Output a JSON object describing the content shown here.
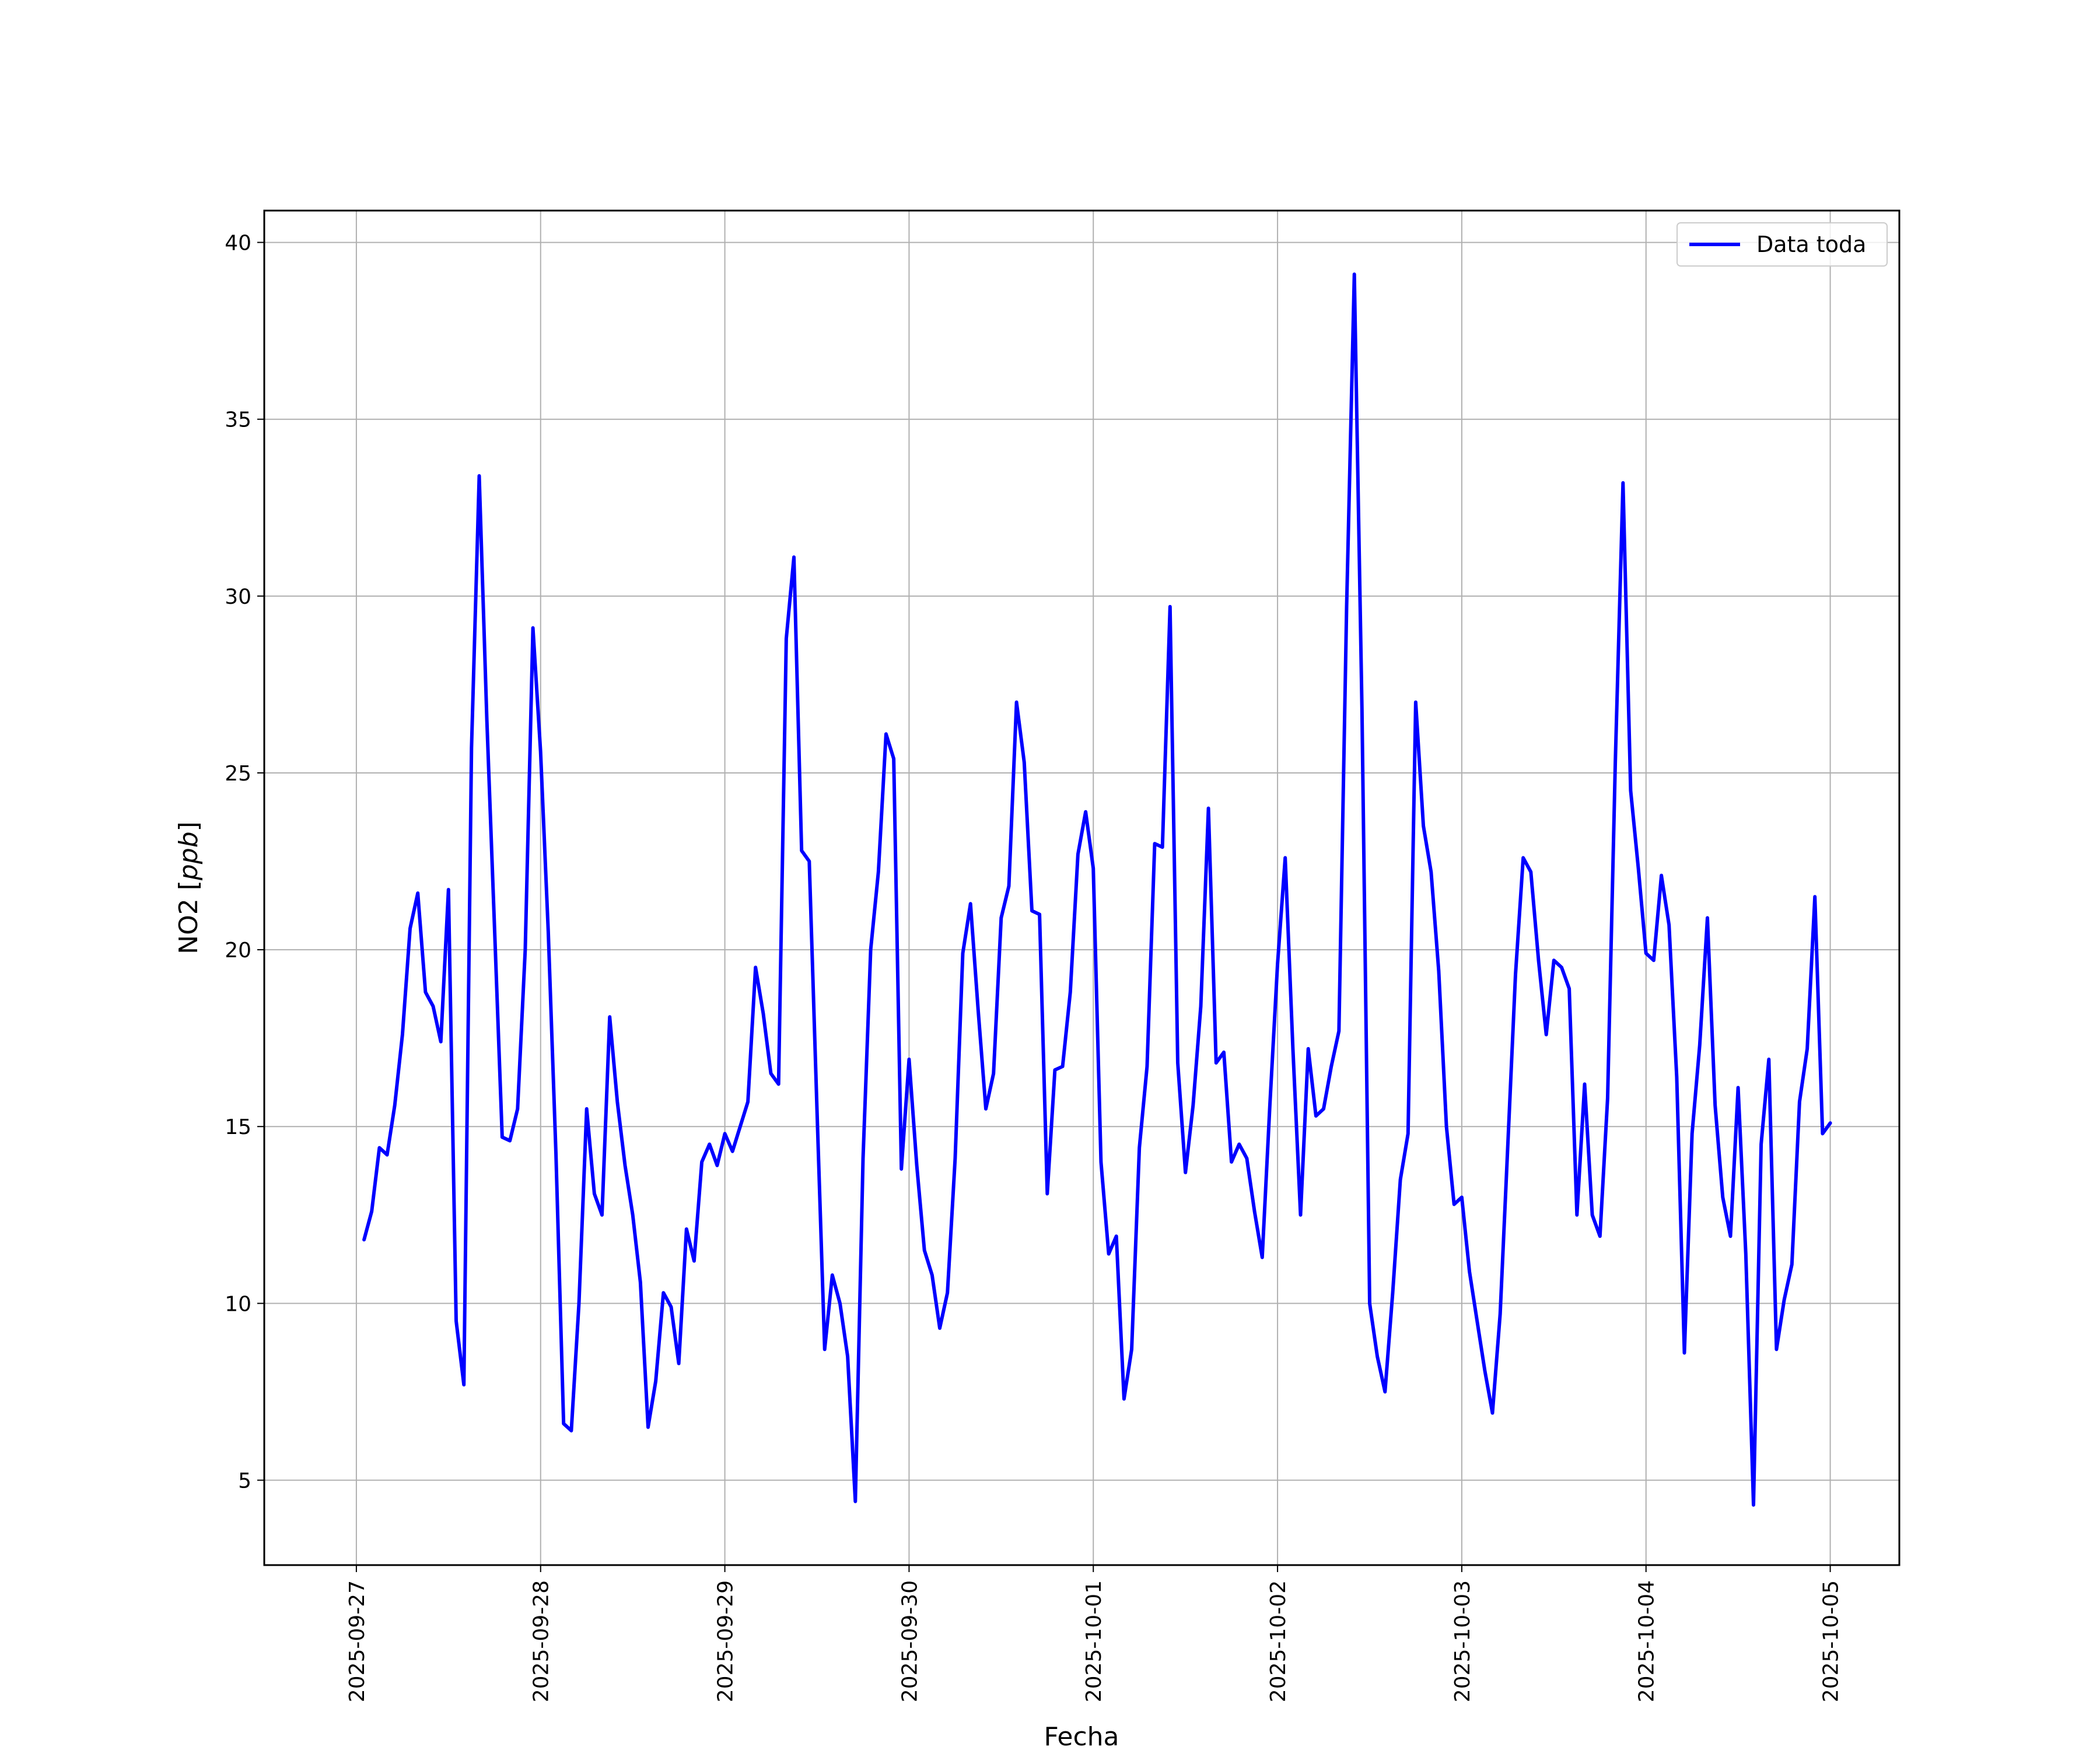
{
  "chart_data": {
    "type": "line",
    "title": "",
    "xlabel": "Fecha",
    "ylabel": "NO2 [ppb]",
    "ylabel_main": "NO2 [",
    "ylabel_unit": "ppb",
    "ylabel_close": "]",
    "x_tick_labels": [
      "2025-09-27",
      "2025-09-28",
      "2025-09-29",
      "2025-09-30",
      "2025-10-01",
      "2025-10-02",
      "2025-10-03",
      "2025-10-04",
      "2025-10-05"
    ],
    "y_ticks": [
      5,
      10,
      15,
      20,
      25,
      30,
      35,
      40
    ],
    "xlim": [
      "2025-09-26T12:00",
      "2025-10-05T09:00"
    ],
    "ylim": [
      2.6,
      40.9
    ],
    "grid": true,
    "legend_position": "top-right",
    "series": [
      {
        "name": "Data toda",
        "color": "#0000ff",
        "x": [
          "2025-09-27T01:00",
          "2025-09-27T02:00",
          "2025-09-27T03:00",
          "2025-09-27T04:00",
          "2025-09-27T05:00",
          "2025-09-27T06:00",
          "2025-09-27T07:00",
          "2025-09-27T08:00",
          "2025-09-27T09:00",
          "2025-09-27T10:00",
          "2025-09-27T11:00",
          "2025-09-27T12:00",
          "2025-09-27T13:00",
          "2025-09-27T14:00",
          "2025-09-27T15:00",
          "2025-09-27T16:00",
          "2025-09-27T17:00",
          "2025-09-27T18:00",
          "2025-09-27T19:00",
          "2025-09-27T20:00",
          "2025-09-27T21:00",
          "2025-09-27T22:00",
          "2025-09-27T23:00",
          "2025-09-28T00:00",
          "2025-09-28T01:00",
          "2025-09-28T02:00",
          "2025-09-28T03:00",
          "2025-09-28T04:00",
          "2025-09-28T05:00",
          "2025-09-28T06:00",
          "2025-09-28T07:00",
          "2025-09-28T08:00",
          "2025-09-28T09:00",
          "2025-09-28T10:00",
          "2025-09-28T11:00",
          "2025-09-28T12:00",
          "2025-09-28T13:00",
          "2025-09-28T14:00",
          "2025-09-28T15:00",
          "2025-09-28T16:00",
          "2025-09-28T17:00",
          "2025-09-28T18:00",
          "2025-09-28T19:00",
          "2025-09-28T20:00",
          "2025-09-28T21:00",
          "2025-09-28T22:00",
          "2025-09-28T23:00",
          "2025-09-29T00:00",
          "2025-09-29T01:00",
          "2025-09-29T02:00",
          "2025-09-29T03:00",
          "2025-09-29T04:00",
          "2025-09-29T05:00",
          "2025-09-29T06:00",
          "2025-09-29T07:00",
          "2025-09-29T08:00",
          "2025-09-29T09:00",
          "2025-09-29T10:00",
          "2025-09-29T11:00",
          "2025-09-29T12:00",
          "2025-09-29T13:00",
          "2025-09-29T14:00",
          "2025-09-29T15:00",
          "2025-09-29T16:00",
          "2025-09-29T17:00",
          "2025-09-29T18:00",
          "2025-09-29T19:00",
          "2025-09-29T20:00",
          "2025-09-29T21:00",
          "2025-09-29T22:00",
          "2025-09-29T23:00",
          "2025-09-30T00:00",
          "2025-09-30T01:00",
          "2025-09-30T02:00",
          "2025-09-30T03:00",
          "2025-09-30T04:00",
          "2025-09-30T05:00",
          "2025-09-30T06:00",
          "2025-09-30T07:00",
          "2025-09-30T08:00",
          "2025-09-30T09:00",
          "2025-09-30T10:00",
          "2025-09-30T11:00",
          "2025-09-30T12:00",
          "2025-09-30T13:00",
          "2025-09-30T14:00",
          "2025-09-30T15:00",
          "2025-09-30T16:00",
          "2025-09-30T17:00",
          "2025-09-30T18:00",
          "2025-09-30T19:00",
          "2025-09-30T20:00",
          "2025-09-30T21:00",
          "2025-09-30T22:00",
          "2025-09-30T23:00",
          "2025-10-01T00:00",
          "2025-10-01T01:00",
          "2025-10-01T02:00",
          "2025-10-01T03:00",
          "2025-10-01T04:00",
          "2025-10-01T05:00",
          "2025-10-01T06:00",
          "2025-10-01T07:00",
          "2025-10-01T08:00",
          "2025-10-01T09:00",
          "2025-10-01T10:00",
          "2025-10-01T11:00",
          "2025-10-01T12:00",
          "2025-10-01T13:00",
          "2025-10-01T14:00",
          "2025-10-01T15:00",
          "2025-10-01T16:00",
          "2025-10-01T17:00",
          "2025-10-01T18:00",
          "2025-10-01T19:00",
          "2025-10-01T20:00",
          "2025-10-01T21:00",
          "2025-10-01T22:00",
          "2025-10-01T23:00",
          "2025-10-02T00:00",
          "2025-10-02T01:00",
          "2025-10-02T02:00",
          "2025-10-02T03:00",
          "2025-10-02T04:00",
          "2025-10-02T05:00",
          "2025-10-02T06:00",
          "2025-10-02T07:00",
          "2025-10-02T08:00",
          "2025-10-02T09:00",
          "2025-10-02T10:00",
          "2025-10-02T11:00",
          "2025-10-02T12:00",
          "2025-10-02T13:00",
          "2025-10-02T14:00",
          "2025-10-02T15:00",
          "2025-10-02T16:00",
          "2025-10-02T17:00",
          "2025-10-02T18:00",
          "2025-10-02T19:00",
          "2025-10-02T20:00",
          "2025-10-02T21:00",
          "2025-10-02T22:00",
          "2025-10-02T23:00",
          "2025-10-03T00:00",
          "2025-10-03T01:00",
          "2025-10-03T02:00",
          "2025-10-03T03:00",
          "2025-10-03T04:00",
          "2025-10-03T05:00",
          "2025-10-03T06:00",
          "2025-10-03T07:00",
          "2025-10-03T08:00",
          "2025-10-03T09:00",
          "2025-10-03T10:00",
          "2025-10-03T11:00",
          "2025-10-03T12:00",
          "2025-10-03T13:00",
          "2025-10-03T14:00",
          "2025-10-03T15:00",
          "2025-10-03T16:00",
          "2025-10-03T17:00",
          "2025-10-03T18:00",
          "2025-10-03T19:00",
          "2025-10-03T20:00",
          "2025-10-03T21:00",
          "2025-10-03T22:00",
          "2025-10-03T23:00",
          "2025-10-04T00:00",
          "2025-10-04T01:00",
          "2025-10-04T02:00",
          "2025-10-04T03:00",
          "2025-10-04T04:00",
          "2025-10-04T05:00",
          "2025-10-04T06:00",
          "2025-10-04T07:00",
          "2025-10-04T08:00",
          "2025-10-04T09:00",
          "2025-10-04T10:00",
          "2025-10-04T11:00",
          "2025-10-04T12:00",
          "2025-10-04T13:00",
          "2025-10-04T14:00",
          "2025-10-04T15:00",
          "2025-10-04T16:00",
          "2025-10-04T17:00",
          "2025-10-04T18:00",
          "2025-10-04T19:00",
          "2025-10-04T20:00",
          "2025-10-04T21:00",
          "2025-10-04T22:00",
          "2025-10-04T23:00",
          "2025-10-05T00:00"
        ],
        "y": [
          11.8,
          12.6,
          14.4,
          14.2,
          15.6,
          17.6,
          20.6,
          21.6,
          18.8,
          18.4,
          17.4,
          21.7,
          9.5,
          7.7,
          25.7,
          33.4,
          26.5,
          20.6,
          14.7,
          14.6,
          15.5,
          20.0,
          29.1,
          25.6,
          20.5,
          14.2,
          6.6,
          6.4,
          10.0,
          15.5,
          13.1,
          12.5,
          18.1,
          15.7,
          13.9,
          12.5,
          10.6,
          6.5,
          7.8,
          10.3,
          9.9,
          8.3,
          12.1,
          11.2,
          14.0,
          14.5,
          13.9,
          14.8,
          14.3,
          15.0,
          15.7,
          19.5,
          18.2,
          16.5,
          16.2,
          28.8,
          31.1,
          22.8,
          22.5,
          15.5,
          8.7,
          10.8,
          10.0,
          8.5,
          4.4,
          14.1,
          20.0,
          22.2,
          26.1,
          25.4,
          13.8,
          16.9,
          13.9,
          11.5,
          10.8,
          9.3,
          10.3,
          14.1,
          19.9,
          21.3,
          18.3,
          15.5,
          16.5,
          20.9,
          21.8,
          27.0,
          25.3,
          21.1,
          21.0,
          13.1,
          16.6,
          16.7,
          18.8,
          22.7,
          23.9,
          22.3,
          14.0,
          11.4,
          11.9,
          7.3,
          8.7,
          14.4,
          16.7,
          23.0,
          22.9,
          29.7,
          16.8,
          13.7,
          15.6,
          18.4,
          24.0,
          16.8,
          17.1,
          14.0,
          14.5,
          14.1,
          12.6,
          11.3,
          15.6,
          19.6,
          22.6,
          17.2,
          12.5,
          17.2,
          15.3,
          15.5,
          16.7,
          17.7,
          29.7,
          39.1,
          26.8,
          10.0,
          8.5,
          7.5,
          10.3,
          13.5,
          14.8,
          27.0,
          23.5,
          22.2,
          19.4,
          15.0,
          12.8,
          13.0,
          10.9,
          9.5,
          8.1,
          6.9,
          9.7,
          14.5,
          19.3,
          22.6,
          22.2,
          19.7,
          17.6,
          19.7,
          19.5,
          18.9,
          12.5,
          16.2,
          12.5,
          11.9,
          15.8,
          25.3,
          33.2,
          24.5,
          22.3,
          19.9,
          19.7,
          22.1,
          20.7,
          16.4,
          8.6,
          14.8,
          17.3,
          20.9,
          15.6,
          13.0,
          11.9,
          16.1,
          11.4,
          4.3,
          14.5,
          16.9,
          8.7,
          10.1,
          11.1,
          15.7,
          17.2,
          21.5,
          14.8,
          15.1
        ]
      }
    ]
  }
}
